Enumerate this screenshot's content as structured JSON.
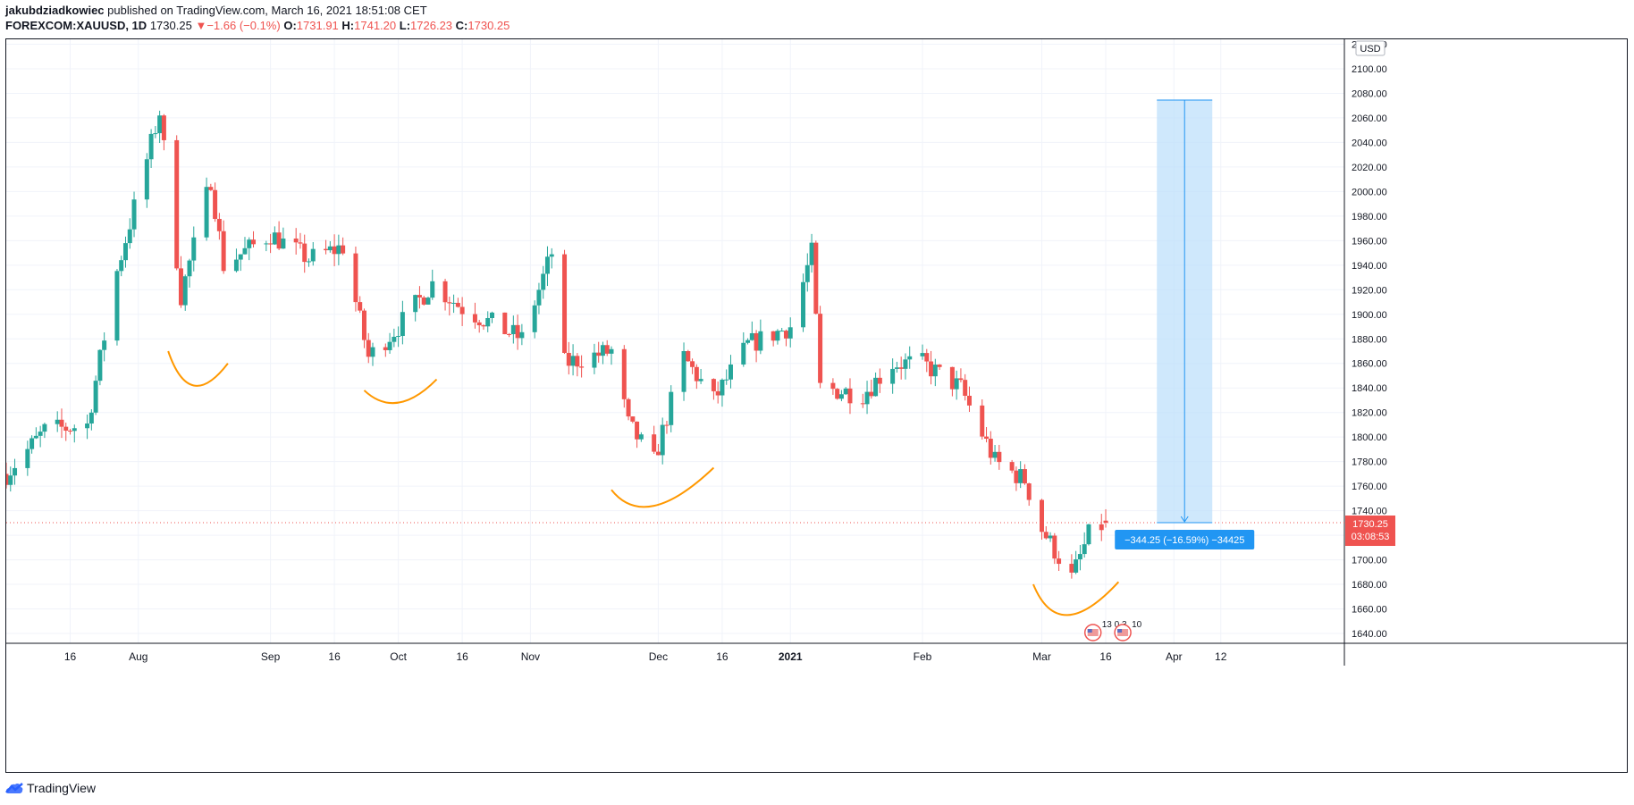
{
  "header": {
    "author": "jakubdziadkowiec",
    "published_text": "published on TradingView.com, March 16, 2021 18:51:08 CET",
    "symbol": "FOREXCOM:XAUUSD, 1D",
    "last": "1730.25",
    "arrow": "▼",
    "change": "−1.66 (−0.1%)",
    "o_label": "O:",
    "o_value": "1731.91",
    "h_label": "H:",
    "h_value": "1741.20",
    "l_label": "L:",
    "l_value": "1726.23",
    "c_label": "C:",
    "c_value": "1730.25"
  },
  "footer": {
    "brand": "TradingView",
    "logo_icon": "tradingview-logo-icon"
  },
  "colors": {
    "up": "#26a69a",
    "down": "#ef5350",
    "arc": "#ff9800",
    "measure": "#2196f3",
    "grid": "#f0f3fa"
  },
  "chart_data": {
    "type": "candlestick",
    "symbol": "FOREXCOM:XAUUSD",
    "interval": "1D",
    "currency": "USD",
    "ylim": [
      1632,
      2124
    ],
    "y_ticks": [
      1640,
      1660,
      1680,
      1700,
      1720,
      1740,
      1760,
      1780,
      1800,
      1820,
      1840,
      1860,
      1880,
      1900,
      1920,
      1940,
      1960,
      1980,
      2000,
      2020,
      2040,
      2060,
      2080,
      2100,
      2120
    ],
    "y_tick_labels": [
      "1640.00",
      "1660.00",
      "1680.00",
      "1700.00",
      "1720.00",
      "1740.00",
      "1760.00",
      "1780.00",
      "1800.00",
      "1820.00",
      "1840.00",
      "1860.00",
      "1880.00",
      "1900.00",
      "1920.00",
      "1940.00",
      "1960.00",
      "1980.00",
      "2000.00",
      "2020.00",
      "2040.00",
      "2060.00",
      "2080.00",
      "2100.00",
      "2120.00"
    ],
    "x_range": [
      "2020-07-01",
      "2021-05-11"
    ],
    "x_ticks": [
      {
        "date": "2020-07-16",
        "label": "16",
        "bold": false
      },
      {
        "date": "2020-08-01",
        "label": "Aug",
        "bold": false
      },
      {
        "date": "2020-09-01",
        "label": "Sep",
        "bold": false
      },
      {
        "date": "2020-09-16",
        "label": "16",
        "bold": false
      },
      {
        "date": "2020-10-01",
        "label": "Oct",
        "bold": false
      },
      {
        "date": "2020-10-16",
        "label": "16",
        "bold": false
      },
      {
        "date": "2020-11-01",
        "label": "Nov",
        "bold": false
      },
      {
        "date": "2020-12-01",
        "label": "Dec",
        "bold": false
      },
      {
        "date": "2020-12-16",
        "label": "16",
        "bold": false
      },
      {
        "date": "2021-01-01",
        "label": "2021",
        "bold": true
      },
      {
        "date": "2021-02-01",
        "label": "Feb",
        "bold": false
      },
      {
        "date": "2021-03-01",
        "label": "Mar",
        "bold": false
      },
      {
        "date": "2021-03-16",
        "label": "16",
        "bold": false
      },
      {
        "date": "2021-04-01",
        "label": "Apr",
        "bold": false
      },
      {
        "date": "2021-04-12",
        "label": "12",
        "bold": false
      }
    ],
    "series_anchors": [
      [
        "2020-07-01",
        1770
      ],
      [
        "2020-07-10",
        1805
      ],
      [
        "2020-07-20",
        1810
      ],
      [
        "2020-07-27",
        1935
      ],
      [
        "2020-08-06",
        2065
      ],
      [
        "2020-08-11",
        1915
      ],
      [
        "2020-08-18",
        2010
      ],
      [
        "2020-08-21",
        1940
      ],
      [
        "2020-09-01",
        1965
      ],
      [
        "2020-09-10",
        1945
      ],
      [
        "2020-09-18",
        1955
      ],
      [
        "2020-09-24",
        1865
      ],
      [
        "2020-10-01",
        1890
      ],
      [
        "2020-10-09",
        1925
      ],
      [
        "2020-10-16",
        1905
      ],
      [
        "2020-10-30",
        1880
      ],
      [
        "2020-11-06",
        1950
      ],
      [
        "2020-11-09",
        1860
      ],
      [
        "2020-11-20",
        1870
      ],
      [
        "2020-11-24",
        1810
      ],
      [
        "2020-11-30",
        1780
      ],
      [
        "2020-12-07",
        1865
      ],
      [
        "2020-12-14",
        1830
      ],
      [
        "2020-12-22",
        1875
      ],
      [
        "2021-01-01",
        1890
      ],
      [
        "2021-01-06",
        1950
      ],
      [
        "2021-01-08",
        1840
      ],
      [
        "2021-01-18",
        1835
      ],
      [
        "2021-01-25",
        1860
      ],
      [
        "2021-02-01",
        1860
      ],
      [
        "2021-02-10",
        1840
      ],
      [
        "2021-02-16",
        1795
      ],
      [
        "2021-02-18",
        1780
      ],
      [
        "2021-02-25",
        1765
      ],
      [
        "2021-03-01",
        1725
      ],
      [
        "2021-03-08",
        1685
      ],
      [
        "2021-03-12",
        1720
      ],
      [
        "2021-03-16",
        1730.25
      ]
    ],
    "last_candle": {
      "date": "2021-03-16",
      "open": 1731.91,
      "high": 1741.2,
      "low": 1726.23,
      "close": 1730.25
    },
    "price_label": {
      "value": "1730.25",
      "countdown": "03:08:53"
    },
    "annotations": {
      "arcs": [
        {
          "start": [
            "2020-08-08",
            1870
          ],
          "mid": [
            "2020-08-14",
            1842
          ],
          "end": [
            "2020-08-22",
            1860
          ]
        },
        {
          "start": [
            "2020-09-23",
            1838
          ],
          "mid": [
            "2020-10-01",
            1828
          ],
          "end": [
            "2020-10-10",
            1847
          ]
        },
        {
          "start": [
            "2020-11-20",
            1757
          ],
          "mid": [
            "2020-11-30",
            1744
          ],
          "end": [
            "2020-12-14",
            1775
          ]
        },
        {
          "start": [
            "2021-02-27",
            1680
          ],
          "mid": [
            "2021-03-07",
            1655
          ],
          "end": [
            "2021-03-19",
            1682
          ]
        }
      ],
      "measure": {
        "x_start": "2021-03-28",
        "x_end": "2021-04-10",
        "from": 2074.5,
        "to": 1730.25,
        "label": "−344.25 (−16.59%) −34425"
      },
      "events": [
        {
          "date": "2021-03-13",
          "label": "13 0 3",
          "icon": "us-flag-event-icon"
        },
        {
          "date": "2021-03-20",
          "label": "10",
          "icon": "us-flag-event-icon"
        }
      ]
    }
  }
}
